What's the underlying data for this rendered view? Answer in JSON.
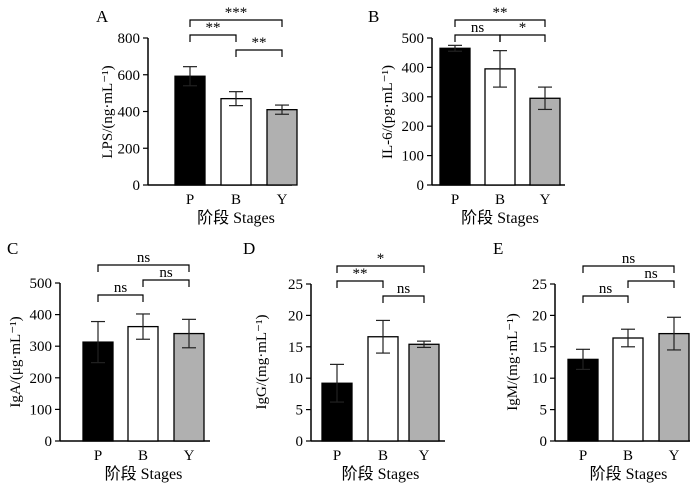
{
  "chart_data": [
    {
      "type": "bar",
      "panel": "A",
      "categories": [
        "P",
        "B",
        "Y"
      ],
      "values": [
        592,
        470,
        410
      ],
      "errors": [
        52,
        38,
        25
      ],
      "bar_colors": [
        "#000000",
        "#ffffff",
        "#b0b0b0"
      ],
      "ylabel": "LPS/(ng·mL⁻¹)",
      "xlabel": "阶段  Stages",
      "ylim": [
        0,
        800
      ],
      "yticks": [
        "0",
        "200",
        "400",
        "600",
        "800"
      ],
      "significance": [
        {
          "from": 0,
          "to": 1,
          "label": "**",
          "level": 1
        },
        {
          "from": 1,
          "to": 2,
          "label": "**",
          "level": 0
        },
        {
          "from": 0,
          "to": 2,
          "label": "***",
          "level": 2
        }
      ]
    },
    {
      "type": "bar",
      "panel": "B",
      "categories": [
        "P",
        "B",
        "Y"
      ],
      "values": [
        465,
        395,
        295
      ],
      "errors": [
        10,
        62,
        38
      ],
      "bar_colors": [
        "#000000",
        "#ffffff",
        "#b0b0b0"
      ],
      "ylabel": "IL-6/(pg·mL⁻¹)",
      "xlabel": "阶段  Stages",
      "ylim": [
        0,
        500
      ],
      "yticks": [
        "0",
        "100",
        "200",
        "300",
        "400",
        "500"
      ],
      "significance": [
        {
          "from": 0,
          "to": 1,
          "label": "ns",
          "level": 1
        },
        {
          "from": 1,
          "to": 2,
          "label": "*",
          "level": 1
        },
        {
          "from": 0,
          "to": 2,
          "label": "**",
          "level": 2
        }
      ]
    },
    {
      "type": "bar",
      "panel": "C",
      "categories": [
        "P",
        "B",
        "Y"
      ],
      "values": [
        313,
        362,
        340
      ],
      "errors": [
        65,
        40,
        45
      ],
      "bar_colors": [
        "#000000",
        "#ffffff",
        "#b0b0b0"
      ],
      "ylabel": "IgA/(μg·mL⁻¹)",
      "xlabel": "阶段  Stages",
      "ylim": [
        0,
        500
      ],
      "yticks": [
        "0",
        "100",
        "200",
        "300",
        "400",
        "500"
      ],
      "significance": [
        {
          "from": 0,
          "to": 1,
          "label": "ns",
          "level": 0
        },
        {
          "from": 1,
          "to": 2,
          "label": "ns",
          "level": 1
        },
        {
          "from": 0,
          "to": 2,
          "label": "ns",
          "level": 2
        }
      ]
    },
    {
      "type": "bar",
      "panel": "D",
      "categories": [
        "P",
        "B",
        "Y"
      ],
      "values": [
        9.2,
        16.6,
        15.4
      ],
      "errors": [
        3.0,
        2.6,
        0.5
      ],
      "bar_colors": [
        "#000000",
        "#ffffff",
        "#b0b0b0"
      ],
      "ylabel": "IgG/(mg·mL⁻¹)",
      "xlabel": "阶段  Stages",
      "ylim": [
        0,
        25
      ],
      "yticks": [
        "0",
        "5",
        "10",
        "15",
        "20",
        "25"
      ],
      "significance": [
        {
          "from": 0,
          "to": 1,
          "label": "**",
          "level": 1
        },
        {
          "from": 1,
          "to": 2,
          "label": "ns",
          "level": 0
        },
        {
          "from": 0,
          "to": 2,
          "label": "*",
          "level": 2
        }
      ]
    },
    {
      "type": "bar",
      "panel": "E",
      "categories": [
        "P",
        "B",
        "Y"
      ],
      "values": [
        13.0,
        16.4,
        17.1
      ],
      "errors": [
        1.6,
        1.4,
        2.6
      ],
      "bar_colors": [
        "#000000",
        "#ffffff",
        "#b0b0b0"
      ],
      "ylabel": "IgM/(mg·mL⁻¹)",
      "xlabel": "阶段  Stages",
      "ylim": [
        0,
        25
      ],
      "yticks": [
        "0",
        "5",
        "10",
        "15",
        "20",
        "25"
      ],
      "significance": [
        {
          "from": 0,
          "to": 1,
          "label": "ns",
          "level": 0
        },
        {
          "from": 1,
          "to": 2,
          "label": "ns",
          "level": 1
        },
        {
          "from": 0,
          "to": 2,
          "label": "ns",
          "level": 2
        }
      ]
    }
  ]
}
